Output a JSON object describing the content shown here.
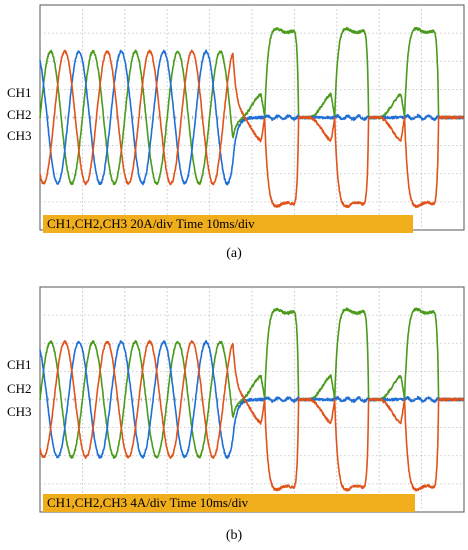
{
  "chart_data": [
    {
      "type": "line",
      "panel_label": "(a)",
      "channel_labels": [
        "CH1",
        "CH2",
        "CH3"
      ],
      "banner": "CH1,CH2,CH3 20A/div  Time 10ms/div",
      "x": [
        0,
        1,
        2,
        3,
        4,
        5,
        6,
        7,
        8,
        9,
        10
      ],
      "xlim": [
        0,
        10
      ],
      "ylim": [
        -4,
        4
      ],
      "grid": true,
      "time_unit": "div",
      "sine": {
        "amplitude_div": 2.35,
        "period_div": 1.0,
        "end_div": 4.55
      },
      "pulses": [
        {
          "start_div": 5.3,
          "end_div": 6.1,
          "amplitude_div": 3.15
        },
        {
          "start_div": 6.95,
          "end_div": 7.75,
          "amplitude_div": 3.15
        },
        {
          "start_div": 8.6,
          "end_div": 9.4,
          "amplitude_div": 3.15
        }
      ],
      "series": [
        {
          "color": "#4a9a1c",
          "phase_deg": 0,
          "pulse_sign": 1
        },
        {
          "color": "#1f6fd6",
          "phase_deg": 120,
          "pulse_sign": 0
        },
        {
          "color": "#e0541c",
          "phase_deg": 240,
          "pulse_sign": -1
        }
      ],
      "banner_color": "#f0ad1c"
    },
    {
      "type": "line",
      "panel_label": "(b)",
      "channel_labels": [
        "CH1",
        "CH2",
        "CH3"
      ],
      "banner": "CH1,CH2,CH3 4A/div Time 10ms/div",
      "x": [
        0,
        1,
        2,
        3,
        4,
        5,
        6,
        7,
        8,
        9,
        10
      ],
      "xlim": [
        0,
        10
      ],
      "ylim": [
        -4,
        4
      ],
      "grid": true,
      "time_unit": "div",
      "sine": {
        "amplitude_div": 2.05,
        "period_div": 1.0,
        "end_div": 4.55
      },
      "pulses": [
        {
          "start_div": 5.3,
          "end_div": 6.1,
          "amplitude_div": 3.2
        },
        {
          "start_div": 6.95,
          "end_div": 7.75,
          "amplitude_div": 3.2
        },
        {
          "start_div": 8.6,
          "end_div": 9.4,
          "amplitude_div": 3.2
        }
      ],
      "series": [
        {
          "color": "#4a9a1c",
          "phase_deg": 0,
          "pulse_sign": 1
        },
        {
          "color": "#1f6fd6",
          "phase_deg": 120,
          "pulse_sign": 0
        },
        {
          "color": "#e0541c",
          "phase_deg": 240,
          "pulse_sign": -1
        }
      ],
      "banner_color": "#f0ad1c"
    }
  ]
}
